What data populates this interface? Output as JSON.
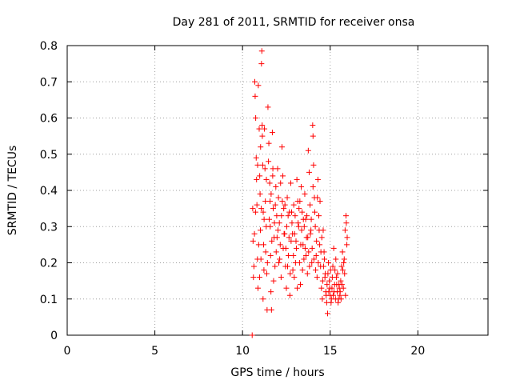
{
  "chart_data": {
    "type": "scatter",
    "title": "Day 281 of 2011, SRMTID for receiver onsa",
    "xlabel": "GPS time / hours",
    "ylabel": "SRMTID / TECUs",
    "xlim": [
      0,
      24
    ],
    "ylim": [
      0,
      0.8
    ],
    "x_ticks": [
      0,
      5,
      10,
      15,
      20
    ],
    "y_ticks": [
      0,
      0.1,
      0.2,
      0.3,
      0.4,
      0.5,
      0.6,
      0.7,
      0.8
    ],
    "x_tick_labels": [
      "0",
      "5",
      "10",
      "15",
      "20"
    ],
    "y_tick_labels": [
      "0",
      "0.1",
      "0.2",
      "0.3",
      "0.4",
      "0.5",
      "0.6",
      "0.7",
      "0.8"
    ],
    "grid": true,
    "marker": "+",
    "marker_color": "#ff0000",
    "series": [
      {
        "points": [
          [
            10.55,
            0.0
          ],
          [
            10.6,
            0.26
          ],
          [
            10.65,
            0.19
          ],
          [
            10.7,
            0.7
          ],
          [
            10.72,
            0.66
          ],
          [
            10.75,
            0.6
          ],
          [
            10.78,
            0.49
          ],
          [
            10.8,
            0.43
          ],
          [
            10.82,
            0.36
          ],
          [
            10.85,
            0.21
          ],
          [
            10.88,
            0.13
          ],
          [
            10.9,
            0.69
          ],
          [
            10.95,
            0.57
          ],
          [
            10.98,
            0.44
          ],
          [
            11.0,
            0.39
          ],
          [
            11.02,
            0.29
          ],
          [
            11.05,
            0.21
          ],
          [
            11.08,
            0.75
          ],
          [
            11.1,
            0.785
          ],
          [
            11.12,
            0.58
          ],
          [
            11.15,
            0.47
          ],
          [
            11.18,
            0.34
          ],
          [
            11.2,
            0.25
          ],
          [
            11.22,
            0.18
          ],
          [
            11.25,
            0.57
          ],
          [
            11.28,
            0.46
          ],
          [
            11.3,
            0.37
          ],
          [
            11.35,
            0.3
          ],
          [
            11.38,
            0.17
          ],
          [
            11.4,
            0.07
          ],
          [
            11.45,
            0.63
          ],
          [
            11.5,
            0.53
          ],
          [
            11.55,
            0.42
          ],
          [
            11.58,
            0.3
          ],
          [
            11.6,
            0.22
          ],
          [
            11.62,
            0.12
          ],
          [
            11.65,
            0.07
          ],
          [
            11.7,
            0.56
          ],
          [
            11.72,
            0.44
          ],
          [
            11.75,
            0.35
          ],
          [
            11.8,
            0.27
          ],
          [
            11.85,
            0.19
          ],
          [
            11.9,
            0.41
          ],
          [
            11.95,
            0.33
          ],
          [
            12.0,
            0.46
          ],
          [
            12.05,
            0.38
          ],
          [
            12.1,
            0.31
          ],
          [
            12.15,
            0.25
          ],
          [
            12.2,
            0.16
          ],
          [
            12.25,
            0.52
          ],
          [
            12.3,
            0.44
          ],
          [
            12.35,
            0.35
          ],
          [
            12.4,
            0.28
          ],
          [
            12.45,
            0.19
          ],
          [
            12.5,
            0.13
          ],
          [
            12.55,
            0.38
          ],
          [
            12.6,
            0.33
          ],
          [
            12.65,
            0.27
          ],
          [
            12.7,
            0.11
          ],
          [
            12.75,
            0.42
          ],
          [
            12.8,
            0.34
          ],
          [
            12.85,
            0.28
          ],
          [
            12.9,
            0.22
          ],
          [
            12.95,
            0.16
          ],
          [
            13.0,
            0.33
          ],
          [
            13.05,
            0.26
          ],
          [
            13.1,
            0.43
          ],
          [
            13.15,
            0.37
          ],
          [
            13.2,
            0.3
          ],
          [
            13.25,
            0.2
          ],
          [
            13.3,
            0.14
          ],
          [
            13.35,
            0.41
          ],
          [
            13.4,
            0.34
          ],
          [
            13.45,
            0.25
          ],
          [
            13.5,
            0.21
          ],
          [
            13.55,
            0.39
          ],
          [
            13.6,
            0.32
          ],
          [
            13.65,
            0.27
          ],
          [
            13.7,
            0.17
          ],
          [
            13.75,
            0.51
          ],
          [
            13.8,
            0.45
          ],
          [
            13.85,
            0.36
          ],
          [
            13.9,
            0.29
          ],
          [
            13.95,
            0.2
          ],
          [
            14.0,
            0.58
          ],
          [
            14.02,
            0.55
          ],
          [
            14.05,
            0.47
          ],
          [
            14.1,
            0.38
          ],
          [
            14.15,
            0.3
          ],
          [
            14.2,
            0.22
          ],
          [
            14.25,
            0.16
          ],
          [
            14.3,
            0.43
          ],
          [
            14.35,
            0.33
          ],
          [
            14.4,
            0.25
          ],
          [
            14.45,
            0.19
          ],
          [
            14.5,
            0.13
          ],
          [
            14.55,
            0.1
          ],
          [
            14.6,
            0.29
          ],
          [
            14.65,
            0.23
          ],
          [
            14.7,
            0.16
          ],
          [
            14.75,
            0.12
          ],
          [
            14.8,
            0.09
          ],
          [
            14.85,
            0.06
          ],
          [
            14.9,
            0.2
          ],
          [
            14.95,
            0.15
          ],
          [
            15.0,
            0.11
          ],
          [
            15.05,
            0.09
          ],
          [
            15.1,
            0.13
          ],
          [
            15.15,
            0.19
          ],
          [
            15.2,
            0.24
          ],
          [
            15.25,
            0.14
          ],
          [
            15.3,
            0.1
          ],
          [
            15.35,
            0.16
          ],
          [
            15.4,
            0.12
          ],
          [
            15.45,
            0.09
          ],
          [
            15.5,
            0.14
          ],
          [
            15.55,
            0.11
          ],
          [
            15.6,
            0.15
          ],
          [
            15.65,
            0.19
          ],
          [
            15.7,
            0.23
          ],
          [
            15.75,
            0.13
          ],
          [
            15.8,
            0.21
          ],
          [
            15.85,
            0.29
          ],
          [
            15.9,
            0.33
          ],
          [
            15.95,
            0.25
          ],
          [
            10.62,
            0.16
          ],
          [
            10.68,
            0.28
          ],
          [
            10.92,
            0.25
          ],
          [
            10.97,
            0.16
          ],
          [
            11.07,
            0.35
          ],
          [
            11.17,
            0.1
          ],
          [
            11.32,
            0.23
          ],
          [
            11.42,
            0.2
          ],
          [
            11.52,
            0.32
          ],
          [
            11.57,
            0.37
          ],
          [
            11.67,
            0.26
          ],
          [
            11.77,
            0.15
          ],
          [
            11.82,
            0.31
          ],
          [
            11.92,
            0.23
          ],
          [
            12.02,
            0.29
          ],
          [
            12.12,
            0.21
          ],
          [
            12.22,
            0.33
          ],
          [
            12.32,
            0.24
          ],
          [
            12.42,
            0.36
          ],
          [
            12.52,
            0.3
          ],
          [
            12.62,
            0.22
          ],
          [
            12.72,
            0.17
          ],
          [
            12.82,
            0.31
          ],
          [
            12.92,
            0.36
          ],
          [
            13.02,
            0.2
          ],
          [
            13.12,
            0.13
          ],
          [
            13.22,
            0.35
          ],
          [
            13.32,
            0.25
          ],
          [
            13.42,
            0.18
          ],
          [
            13.52,
            0.3
          ],
          [
            13.62,
            0.22
          ],
          [
            13.72,
            0.27
          ],
          [
            13.82,
            0.19
          ],
          [
            13.92,
            0.32
          ],
          [
            14.02,
            0.41
          ],
          [
            14.12,
            0.34
          ],
          [
            14.22,
            0.26
          ],
          [
            14.32,
            0.2
          ],
          [
            14.42,
            0.37
          ],
          [
            14.52,
            0.27
          ],
          [
            14.62,
            0.19
          ],
          [
            14.72,
            0.17
          ],
          [
            14.82,
            0.14
          ],
          [
            14.92,
            0.12
          ],
          [
            15.02,
            0.18
          ],
          [
            15.12,
            0.16
          ],
          [
            15.22,
            0.12
          ],
          [
            15.32,
            0.21
          ],
          [
            15.42,
            0.17
          ],
          [
            15.52,
            0.13
          ],
          [
            15.62,
            0.1
          ],
          [
            15.72,
            0.18
          ],
          [
            15.82,
            0.17
          ],
          [
            15.92,
            0.31
          ],
          [
            10.58,
            0.35
          ],
          [
            10.74,
            0.34
          ],
          [
            10.86,
            0.47
          ],
          [
            11.03,
            0.52
          ],
          [
            11.13,
            0.55
          ],
          [
            11.23,
            0.32
          ],
          [
            11.36,
            0.43
          ],
          [
            11.48,
            0.48
          ],
          [
            11.63,
            0.39
          ],
          [
            11.73,
            0.46
          ],
          [
            11.87,
            0.36
          ],
          [
            11.97,
            0.27
          ],
          [
            12.07,
            0.2
          ],
          [
            12.17,
            0.42
          ],
          [
            12.27,
            0.37
          ],
          [
            12.37,
            0.28
          ],
          [
            12.47,
            0.24
          ],
          [
            12.57,
            0.19
          ],
          [
            12.67,
            0.34
          ],
          [
            12.77,
            0.26
          ],
          [
            12.87,
            0.18
          ],
          [
            12.97,
            0.28
          ],
          [
            13.07,
            0.24
          ],
          [
            13.17,
            0.31
          ],
          [
            13.27,
            0.37
          ],
          [
            13.37,
            0.29
          ],
          [
            13.47,
            0.32
          ],
          [
            13.57,
            0.24
          ],
          [
            13.67,
            0.33
          ],
          [
            13.77,
            0.23
          ],
          [
            13.87,
            0.28
          ],
          [
            13.97,
            0.24
          ],
          [
            14.07,
            0.21
          ],
          [
            14.17,
            0.18
          ],
          [
            14.27,
            0.38
          ],
          [
            14.37,
            0.29
          ],
          [
            14.47,
            0.23
          ],
          [
            14.57,
            0.15
          ],
          [
            14.67,
            0.21
          ],
          [
            14.77,
            0.11
          ],
          [
            14.87,
            0.17
          ],
          [
            14.97,
            0.13
          ],
          [
            15.07,
            0.1
          ],
          [
            15.17,
            0.11
          ],
          [
            15.27,
            0.18
          ],
          [
            15.37,
            0.14
          ],
          [
            15.47,
            0.1
          ],
          [
            15.57,
            0.12
          ],
          [
            15.67,
            0.14
          ],
          [
            15.77,
            0.2
          ],
          [
            15.87,
            0.11
          ],
          [
            15.97,
            0.27
          ]
        ]
      }
    ]
  }
}
